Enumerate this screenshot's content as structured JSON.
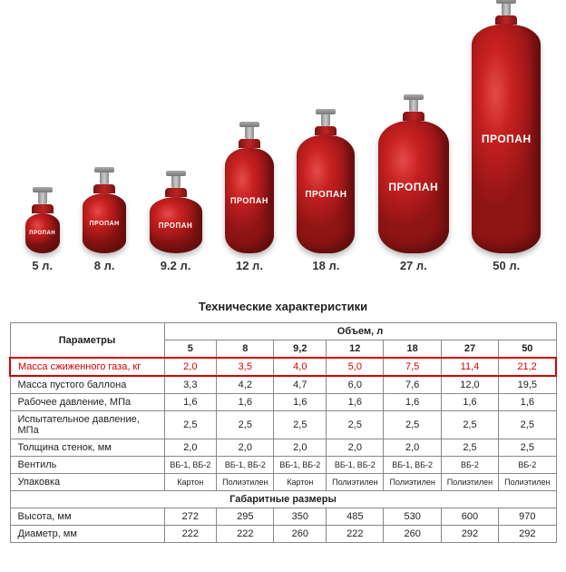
{
  "cylinders": [
    {
      "caption": "5 л.",
      "label": "ПРОПАН",
      "body_w": 38,
      "body_h": 44,
      "tall": false,
      "radius": "50% / 30%",
      "font": 6,
      "show_label": true
    },
    {
      "caption": "8 л.",
      "label": "ПРОПАН",
      "body_w": 48,
      "body_h": 66,
      "tall": false,
      "radius": "50% / 22%",
      "font": 7,
      "show_label": true
    },
    {
      "caption": "9.2 л.",
      "label": "ПРОПАН",
      "body_w": 58,
      "body_h": 62,
      "tall": false,
      "radius": "50% / 26%",
      "font": 8,
      "show_label": true
    },
    {
      "caption": "12 л.",
      "label": "ПРОПАН",
      "body_w": 54,
      "body_h": 116,
      "tall": true,
      "radius": "24px / 20px",
      "font": 9,
      "show_label": true
    },
    {
      "caption": "18 л.",
      "label": "ПРОПАН",
      "body_w": 64,
      "body_h": 130,
      "tall": true,
      "radius": "28px / 22px",
      "font": 10,
      "show_label": true
    },
    {
      "caption": "27 л.",
      "label": "ПРОПАН",
      "body_w": 78,
      "body_h": 146,
      "tall": true,
      "radius": "34px / 26px",
      "font": 12,
      "show_label": true
    },
    {
      "caption": "50 л.",
      "label": "ПРОПАН",
      "body_w": 76,
      "body_h": 252,
      "tall": true,
      "radius": "34px / 22px",
      "font": 12,
      "show_label": true
    }
  ],
  "colors": {
    "cylinder_fill": "#c72020",
    "text": "#222222",
    "highlight": "#d40000"
  },
  "table": {
    "title": "Технические характеристики",
    "col_group_header": "Объем, л",
    "param_header": "Параметры",
    "columns": [
      "5",
      "8",
      "9,2",
      "12",
      "18",
      "27",
      "50"
    ],
    "rows": [
      {
        "label": "Масса сжиженного газа, кг",
        "values": [
          "2,0",
          "3,5",
          "4,0",
          "5,0",
          "7,5",
          "11,4",
          "21,2"
        ],
        "highlight": true
      },
      {
        "label": "Масса пустого баллона",
        "values": [
          "3,3",
          "4,2",
          "4,7",
          "6,0",
          "7,6",
          "12,0",
          "19,5"
        ],
        "highlight": false
      },
      {
        "label": "Рабочее давление, МПа",
        "values": [
          "1,6",
          "1,6",
          "1,6",
          "1,6",
          "1,6",
          "1,6",
          "1,6"
        ],
        "highlight": false
      },
      {
        "label": "Испытательное давление, МПа",
        "values": [
          "2,5",
          "2,5",
          "2,5",
          "2,5",
          "2,5",
          "2,5",
          "2,5"
        ],
        "highlight": false
      },
      {
        "label": "Толщина стенок, мм",
        "values": [
          "2,0",
          "2,0",
          "2,0",
          "2,0",
          "2,0",
          "2,5",
          "2,5"
        ],
        "highlight": false
      },
      {
        "label": "Вентиль",
        "values": [
          "ВБ-1, ВБ-2",
          "ВБ-1, ВБ-2",
          "ВБ-1, ВБ-2",
          "ВБ-1, ВБ-2",
          "ВБ-1, ВБ-2",
          "ВБ-2",
          "ВБ-2"
        ],
        "highlight": false,
        "small": true
      },
      {
        "label": "Упаковка",
        "values": [
          "Картон",
          "Полиэтилен",
          "Картон",
          "Полиэтилен",
          "Полиэтилен",
          "Полиэтилен",
          "Полиэтилен"
        ],
        "highlight": false,
        "small": true
      }
    ],
    "section2_header": "Габаритные размеры",
    "rows2": [
      {
        "label": "Высота, мм",
        "values": [
          "272",
          "295",
          "350",
          "485",
          "530",
          "600",
          "970"
        ]
      },
      {
        "label": "Диаметр, мм",
        "values": [
          "222",
          "222",
          "260",
          "222",
          "260",
          "292",
          "292"
        ]
      }
    ]
  }
}
